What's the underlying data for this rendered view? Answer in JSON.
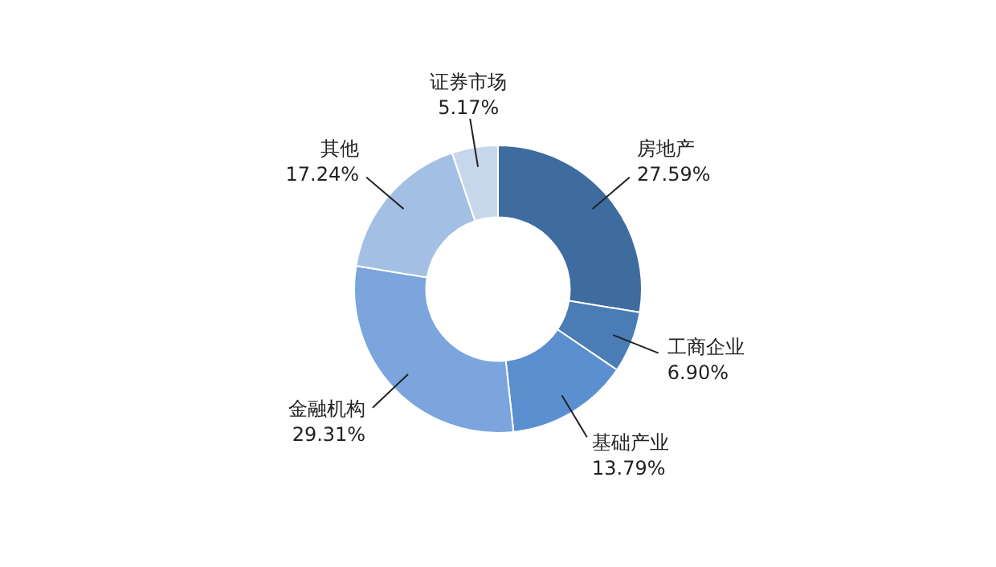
{
  "chart_data": {
    "type": "donut",
    "categories": [
      "房地产",
      "工商企业",
      "基础产业",
      "金融机构",
      "其他",
      "证券市场"
    ],
    "values": [
      27.59,
      6.9,
      13.79,
      29.31,
      17.24,
      5.17
    ],
    "value_labels": [
      "27.59%",
      "6.90%",
      "13.79%",
      "29.31%",
      "17.24%",
      "5.17%"
    ],
    "colors": [
      "#3e6c9f",
      "#4a7cb5",
      "#5b8fd0",
      "#7ba5dc",
      "#a3bfe3",
      "#c7d7eb"
    ],
    "legend": false
  }
}
